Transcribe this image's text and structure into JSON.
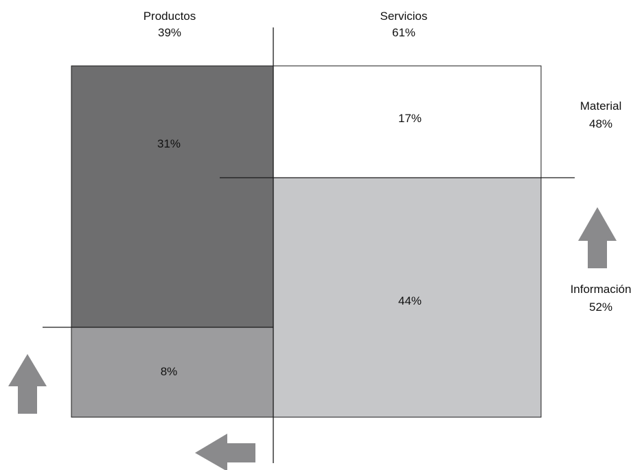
{
  "chart_data": {
    "type": "marimekko",
    "columns": [
      {
        "name": "Productos",
        "share": "39%",
        "share_value": 39,
        "segments": [
          {
            "label": "31%",
            "value": 31,
            "color": "#6e6e6f"
          },
          {
            "label": "8%",
            "value": 8,
            "color": "#9c9c9e"
          }
        ]
      },
      {
        "name": "Servicios",
        "share": "61%",
        "share_value": 61,
        "segments": [
          {
            "label": "17%",
            "value": 17,
            "color": "#ffffff"
          },
          {
            "label": "44%",
            "value": 44,
            "color": "#c6c7c9"
          }
        ]
      }
    ],
    "rows": [
      {
        "name": "Material",
        "share": "48%",
        "share_value": 48
      },
      {
        "name": "Información",
        "share": "52%",
        "share_value": 52
      }
    ],
    "arrow_color": "#8a8a8c",
    "line_color": "#1a1a1a"
  }
}
